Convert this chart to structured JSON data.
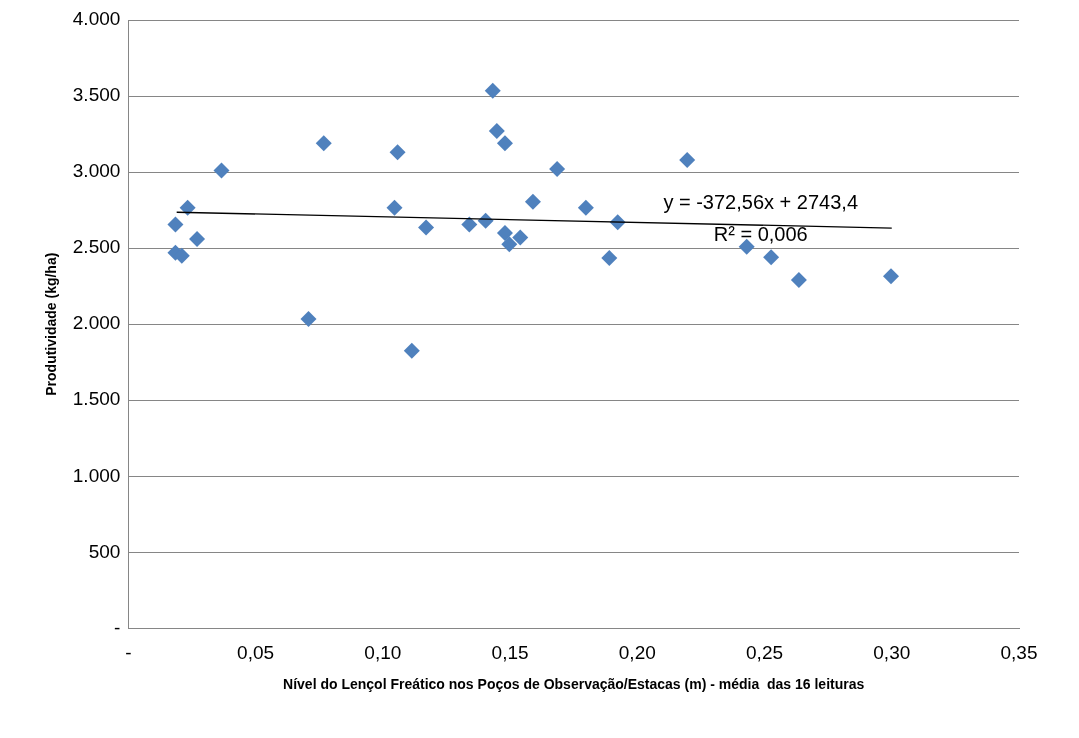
{
  "chart_data": {
    "type": "scatter",
    "xlabel": "Nível do Lençol Freático nos Poços de Observação/Estacas (m) - média  das 16 leituras",
    "ylabel": "Produtividade (kg/ha)",
    "series": [
      {
        "type": "scatter",
        "color": "#4f81bd",
        "marker": "diamond",
        "x": [
          0.0185,
          0.0185,
          0.021,
          0.0233,
          0.027,
          0.0366,
          0.0708,
          0.0768,
          0.1046,
          0.1058,
          0.1114,
          0.117,
          0.134,
          0.1404,
          0.1432,
          0.1448,
          0.148,
          0.148,
          0.1497,
          0.154,
          0.159,
          0.1685,
          0.1798,
          0.189,
          0.1923,
          0.2196,
          0.243,
          0.2526,
          0.2635,
          0.2997
        ],
        "values": [
          2470,
          2655,
          2450,
          2765,
          2560,
          3010,
          2035,
          3190,
          2765,
          3130,
          1825,
          2635,
          2655,
          2680,
          3535,
          3270,
          3190,
          2600,
          2525,
          2570,
          2805,
          3020,
          2765,
          2435,
          2670,
          3080,
          2510,
          2440,
          2290,
          2315
        ]
      },
      {
        "type": "line",
        "color": "#000000",
        "marker": "none",
        "x": [
          0.019,
          0.3
        ],
        "values": [
          2736,
          2632
        ]
      }
    ],
    "annotations": [
      "y = -372,56x + 2743,4",
      "R² = 0,006"
    ],
    "xlim": [
      0,
      0.35
    ],
    "xticks": [
      {
        "value": 0,
        "label": "-"
      },
      {
        "value": 0.05,
        "label": "0,05"
      },
      {
        "value": 0.1,
        "label": "0,10"
      },
      {
        "value": 0.15,
        "label": "0,15"
      },
      {
        "value": 0.2,
        "label": "0,20"
      },
      {
        "value": 0.25,
        "label": "0,25"
      },
      {
        "value": 0.3,
        "label": "0,30"
      },
      {
        "value": 0.35,
        "label": "0,35"
      }
    ],
    "ylim": [
      0,
      4000
    ],
    "yticks": [
      {
        "value": 0,
        "label": "-"
      },
      500,
      {
        "value": 1000,
        "label": "1.000"
      },
      {
        "value": 1500,
        "label": "1.500"
      },
      {
        "value": 2000,
        "label": "2.000"
      },
      {
        "value": 2500,
        "label": "2.500"
      },
      {
        "value": 3000,
        "label": "3.000"
      },
      {
        "value": 3500,
        "label": "3.500"
      },
      {
        "value": 4000,
        "label": "4.000"
      }
    ],
    "grid": "y",
    "legend": false
  }
}
